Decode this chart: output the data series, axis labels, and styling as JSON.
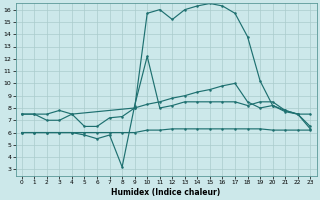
{
  "xlabel": "Humidex (Indice chaleur)",
  "bg_color": "#cce8ea",
  "grid_color": "#aacccc",
  "line_color": "#1e7070",
  "xlim": [
    -0.5,
    23.5
  ],
  "ylim": [
    2.5,
    16.5
  ],
  "xticks": [
    0,
    1,
    2,
    3,
    4,
    5,
    6,
    7,
    8,
    9,
    10,
    11,
    12,
    13,
    14,
    15,
    16,
    17,
    18,
    19,
    20,
    21,
    22,
    23
  ],
  "yticks": [
    3,
    4,
    5,
    6,
    7,
    8,
    9,
    10,
    11,
    12,
    13,
    14,
    15,
    16
  ],
  "curve1_x": [
    0,
    1,
    2,
    3,
    4,
    9,
    10,
    11,
    12,
    13,
    14,
    15,
    16,
    17,
    18,
    19,
    20,
    21,
    22,
    23
  ],
  "curve1_y": [
    7.5,
    7.5,
    7.0,
    7.0,
    7.5,
    8.0,
    15.7,
    16.0,
    15.2,
    16.0,
    16.3,
    16.5,
    16.3,
    15.7,
    13.8,
    10.2,
    8.2,
    7.7,
    7.5,
    7.5
  ],
  "curve2_x": [
    0,
    1,
    2,
    3,
    4,
    5,
    6,
    7,
    8,
    9,
    10,
    11,
    12,
    13,
    14,
    15,
    16,
    17,
    18,
    19,
    20,
    21,
    22,
    23
  ],
  "curve2_y": [
    7.5,
    7.5,
    7.5,
    7.8,
    7.5,
    6.5,
    6.5,
    7.2,
    7.3,
    8.0,
    8.3,
    8.5,
    8.8,
    9.0,
    9.3,
    9.5,
    9.8,
    10.0,
    8.5,
    8.0,
    8.2,
    7.8,
    7.5,
    6.5
  ],
  "curve3_x": [
    0,
    1,
    2,
    3,
    4,
    5,
    6,
    7,
    8,
    9,
    10,
    11,
    12,
    13,
    14,
    15,
    16,
    17,
    18,
    19,
    20,
    21,
    22,
    23
  ],
  "curve3_y": [
    6.0,
    6.0,
    6.0,
    6.0,
    6.0,
    5.8,
    5.5,
    5.8,
    3.2,
    8.2,
    12.2,
    8.0,
    8.2,
    8.5,
    8.5,
    8.5,
    8.5,
    8.5,
    8.2,
    8.5,
    8.5,
    7.8,
    7.5,
    6.3
  ],
  "curve4_x": [
    0,
    1,
    2,
    3,
    4,
    5,
    6,
    7,
    8,
    9,
    10,
    11,
    12,
    13,
    14,
    15,
    16,
    17,
    18,
    19,
    20,
    21,
    22,
    23
  ],
  "curve4_y": [
    6.0,
    6.0,
    6.0,
    6.0,
    6.0,
    6.0,
    6.0,
    6.0,
    6.0,
    6.0,
    6.2,
    6.2,
    6.3,
    6.3,
    6.3,
    6.3,
    6.3,
    6.3,
    6.3,
    6.3,
    6.2,
    6.2,
    6.2,
    6.2
  ]
}
